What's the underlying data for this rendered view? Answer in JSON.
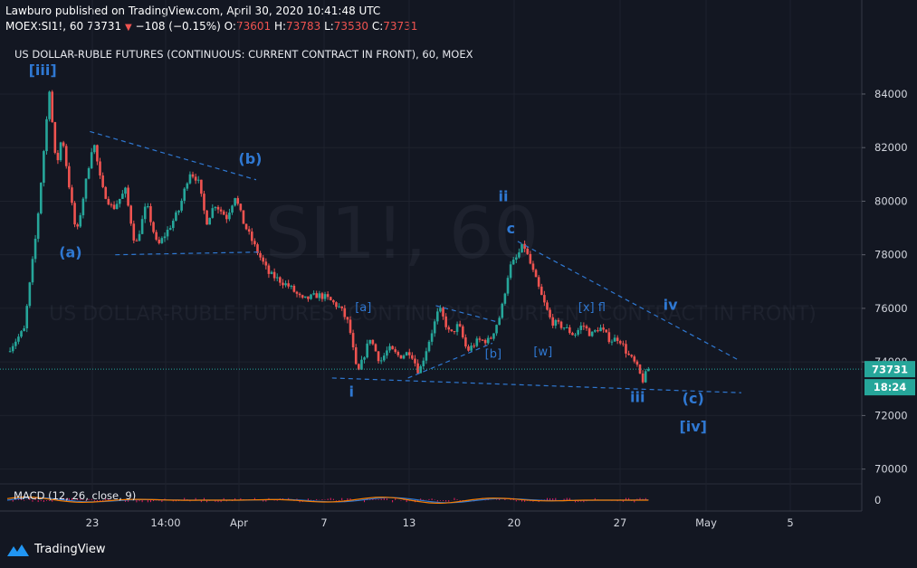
{
  "header": {
    "publisher": "Lawburo published on TradingView.com, April 30, 2020 10:41:48 UTC",
    "symbol": "MOEX:SI1!, 60",
    "last": "73731",
    "change": "−108 (−0.15%)",
    "open_label": "O:",
    "open": "73601",
    "high_label": "H:",
    "high": "73783",
    "low_label": "L:",
    "low": "73530",
    "close_label": "C:",
    "close": "73731"
  },
  "colors": {
    "background": "#131722",
    "up": "#26a69a",
    "down": "#ef5350",
    "wave_label": "#2f78d2",
    "trend_line": "#2f78d2",
    "axis_text": "#d1d4dc",
    "price_badge": "#26a69a",
    "macd_line": "#f57c00",
    "macd_signal": "#2f78d2",
    "macd_hist": "#e91e63"
  },
  "watermark": {
    "symbol": "SI1!, 60",
    "description": "US DOLLAR-RUBLE FUTURES (CONTINUOUS: CURRENT CONTRACT IN FRONT)"
  },
  "macd_label": "MACD (12, 26, close, 9)",
  "footer": {
    "brand": "TradingView",
    "icon": "tradingview-logo-icon"
  },
  "chart_data": {
    "type": "candlestick",
    "title": "US DOLLAR-RUBLE FUTURES (CONTINUOUS: CURRENT CONTRACT IN FRONT), 60, MOEX",
    "ylim": [
      69300,
      85200
    ],
    "y_ticks": [
      "84000",
      "82000",
      "80000",
      "78000",
      "76000",
      "74000",
      "72000",
      "70000"
    ],
    "x_ticks": [
      "23",
      "14:00",
      "Apr",
      "7",
      "13",
      "20",
      "27",
      "May",
      "5"
    ],
    "current_price": "73731",
    "countdown": "18:24",
    "price_path": [
      {
        "t": 0,
        "price": 74400
      },
      {
        "t": 2,
        "price": 75200
      },
      {
        "t": 3.5,
        "price": 79000
      },
      {
        "t": 5,
        "price": 84200
      },
      {
        "t": 5.8,
        "price": 81200
      },
      {
        "t": 6.5,
        "price": 82500
      },
      {
        "t": 7.5,
        "price": 80200
      },
      {
        "t": 8.2,
        "price": 78700
      },
      {
        "t": 9.2,
        "price": 80500
      },
      {
        "t": 10.2,
        "price": 82300
      },
      {
        "t": 11.2,
        "price": 80500
      },
      {
        "t": 12.5,
        "price": 79700
      },
      {
        "t": 14,
        "price": 80400
      },
      {
        "t": 15.2,
        "price": 78300
      },
      {
        "t": 16.5,
        "price": 79900
      },
      {
        "t": 17.8,
        "price": 78300
      },
      {
        "t": 19.2,
        "price": 79000
      },
      {
        "t": 20.4,
        "price": 79700
      },
      {
        "t": 21.6,
        "price": 81100
      },
      {
        "t": 22.6,
        "price": 80800
      },
      {
        "t": 23.6,
        "price": 79200
      },
      {
        "t": 24.6,
        "price": 79900
      },
      {
        "t": 26,
        "price": 79400
      },
      {
        "t": 27,
        "price": 80200
      },
      {
        "t": 28,
        "price": 79200
      },
      {
        "t": 29.5,
        "price": 78200
      },
      {
        "t": 31,
        "price": 77300
      },
      {
        "t": 32.5,
        "price": 77000
      },
      {
        "t": 33.5,
        "price": 76800
      },
      {
        "t": 35,
        "price": 76300
      },
      {
        "t": 36.8,
        "price": 76500
      },
      {
        "t": 37.8,
        "price": 76400
      },
      {
        "t": 39.5,
        "price": 76000
      },
      {
        "t": 40.5,
        "price": 75400
      },
      {
        "t": 41.5,
        "price": 73500
      },
      {
        "t": 43,
        "price": 74900
      },
      {
        "t": 44.2,
        "price": 74000
      },
      {
        "t": 45.2,
        "price": 74500
      },
      {
        "t": 46.5,
        "price": 74200
      },
      {
        "t": 47.8,
        "price": 74400
      },
      {
        "t": 48.8,
        "price": 73600
      },
      {
        "t": 50,
        "price": 74800
      },
      {
        "t": 51.2,
        "price": 76000
      },
      {
        "t": 52.5,
        "price": 75000
      },
      {
        "t": 53.5,
        "price": 75400
      },
      {
        "t": 54.5,
        "price": 74400
      },
      {
        "t": 55.8,
        "price": 74800
      },
      {
        "t": 57.2,
        "price": 74800
      },
      {
        "t": 58.5,
        "price": 75800
      },
      {
        "t": 59.5,
        "price": 77500
      },
      {
        "t": 60.4,
        "price": 77900
      },
      {
        "t": 61.2,
        "price": 78400
      },
      {
        "t": 62.5,
        "price": 77200
      },
      {
        "t": 63.5,
        "price": 76300
      },
      {
        "t": 64.5,
        "price": 75500
      },
      {
        "t": 66,
        "price": 75300
      },
      {
        "t": 67.2,
        "price": 75000
      },
      {
        "t": 68.2,
        "price": 75400
      },
      {
        "t": 69.2,
        "price": 75000
      },
      {
        "t": 70.2,
        "price": 75300
      },
      {
        "t": 71.5,
        "price": 74800
      },
      {
        "t": 72.5,
        "price": 74900
      },
      {
        "t": 73.5,
        "price": 74300
      },
      {
        "t": 74.5,
        "price": 73900
      },
      {
        "t": 75.3,
        "price": 73300
      },
      {
        "t": 76,
        "price": 73731
      }
    ],
    "annotations": [
      {
        "label": "[iii]",
        "t": 4.2,
        "price": 84700,
        "size": "big"
      },
      {
        "label": "(a)",
        "t": 7.5,
        "price": 77900,
        "size": "big"
      },
      {
        "label": "(b)",
        "t": 28.8,
        "price": 81400,
        "size": "big"
      },
      {
        "label": "[a]",
        "t": 42.2,
        "price": 75900,
        "size": "small"
      },
      {
        "label": "[b]",
        "t": 57.6,
        "price": 74150,
        "size": "small"
      },
      {
        "label": "i",
        "t": 40.8,
        "price": 72700,
        "size": "big"
      },
      {
        "label": "ii",
        "t": 58.8,
        "price": 80000,
        "size": "big"
      },
      {
        "label": "c",
        "t": 59.7,
        "price": 78800,
        "size": "big"
      },
      {
        "label": "[w]",
        "t": 63.5,
        "price": 74250,
        "size": "small"
      },
      {
        "label": "[x] fl",
        "t": 69.3,
        "price": 75900,
        "size": "small"
      },
      {
        "label": "iii",
        "t": 74.7,
        "price": 72500,
        "size": "big"
      },
      {
        "label": "iv",
        "t": 78.6,
        "price": 75950,
        "size": "big"
      },
      {
        "label": "(c)",
        "t": 81.3,
        "price": 72450,
        "size": "big"
      },
      {
        "label": "[iv]",
        "t": 81.3,
        "price": 71400,
        "size": "big"
      }
    ],
    "trend_lines": [
      {
        "from": {
          "t": 9.8,
          "price": 82600
        },
        "to": {
          "t": 29.5,
          "price": 80800
        }
      },
      {
        "from": {
          "t": 12.8,
          "price": 78000
        },
        "to": {
          "t": 29.7,
          "price": 78100
        }
      },
      {
        "from": {
          "t": 38.5,
          "price": 73400
        },
        "to": {
          "t": 87,
          "price": 72850
        }
      },
      {
        "from": {
          "t": 47.5,
          "price": 73400
        },
        "to": {
          "t": 57.5,
          "price": 74700
        }
      },
      {
        "from": {
          "t": 50.8,
          "price": 76100
        },
        "to": {
          "t": 58,
          "price": 75500
        }
      },
      {
        "from": {
          "t": 60.5,
          "price": 78500
        },
        "to": {
          "t": 86.5,
          "price": 74100
        }
      }
    ]
  }
}
